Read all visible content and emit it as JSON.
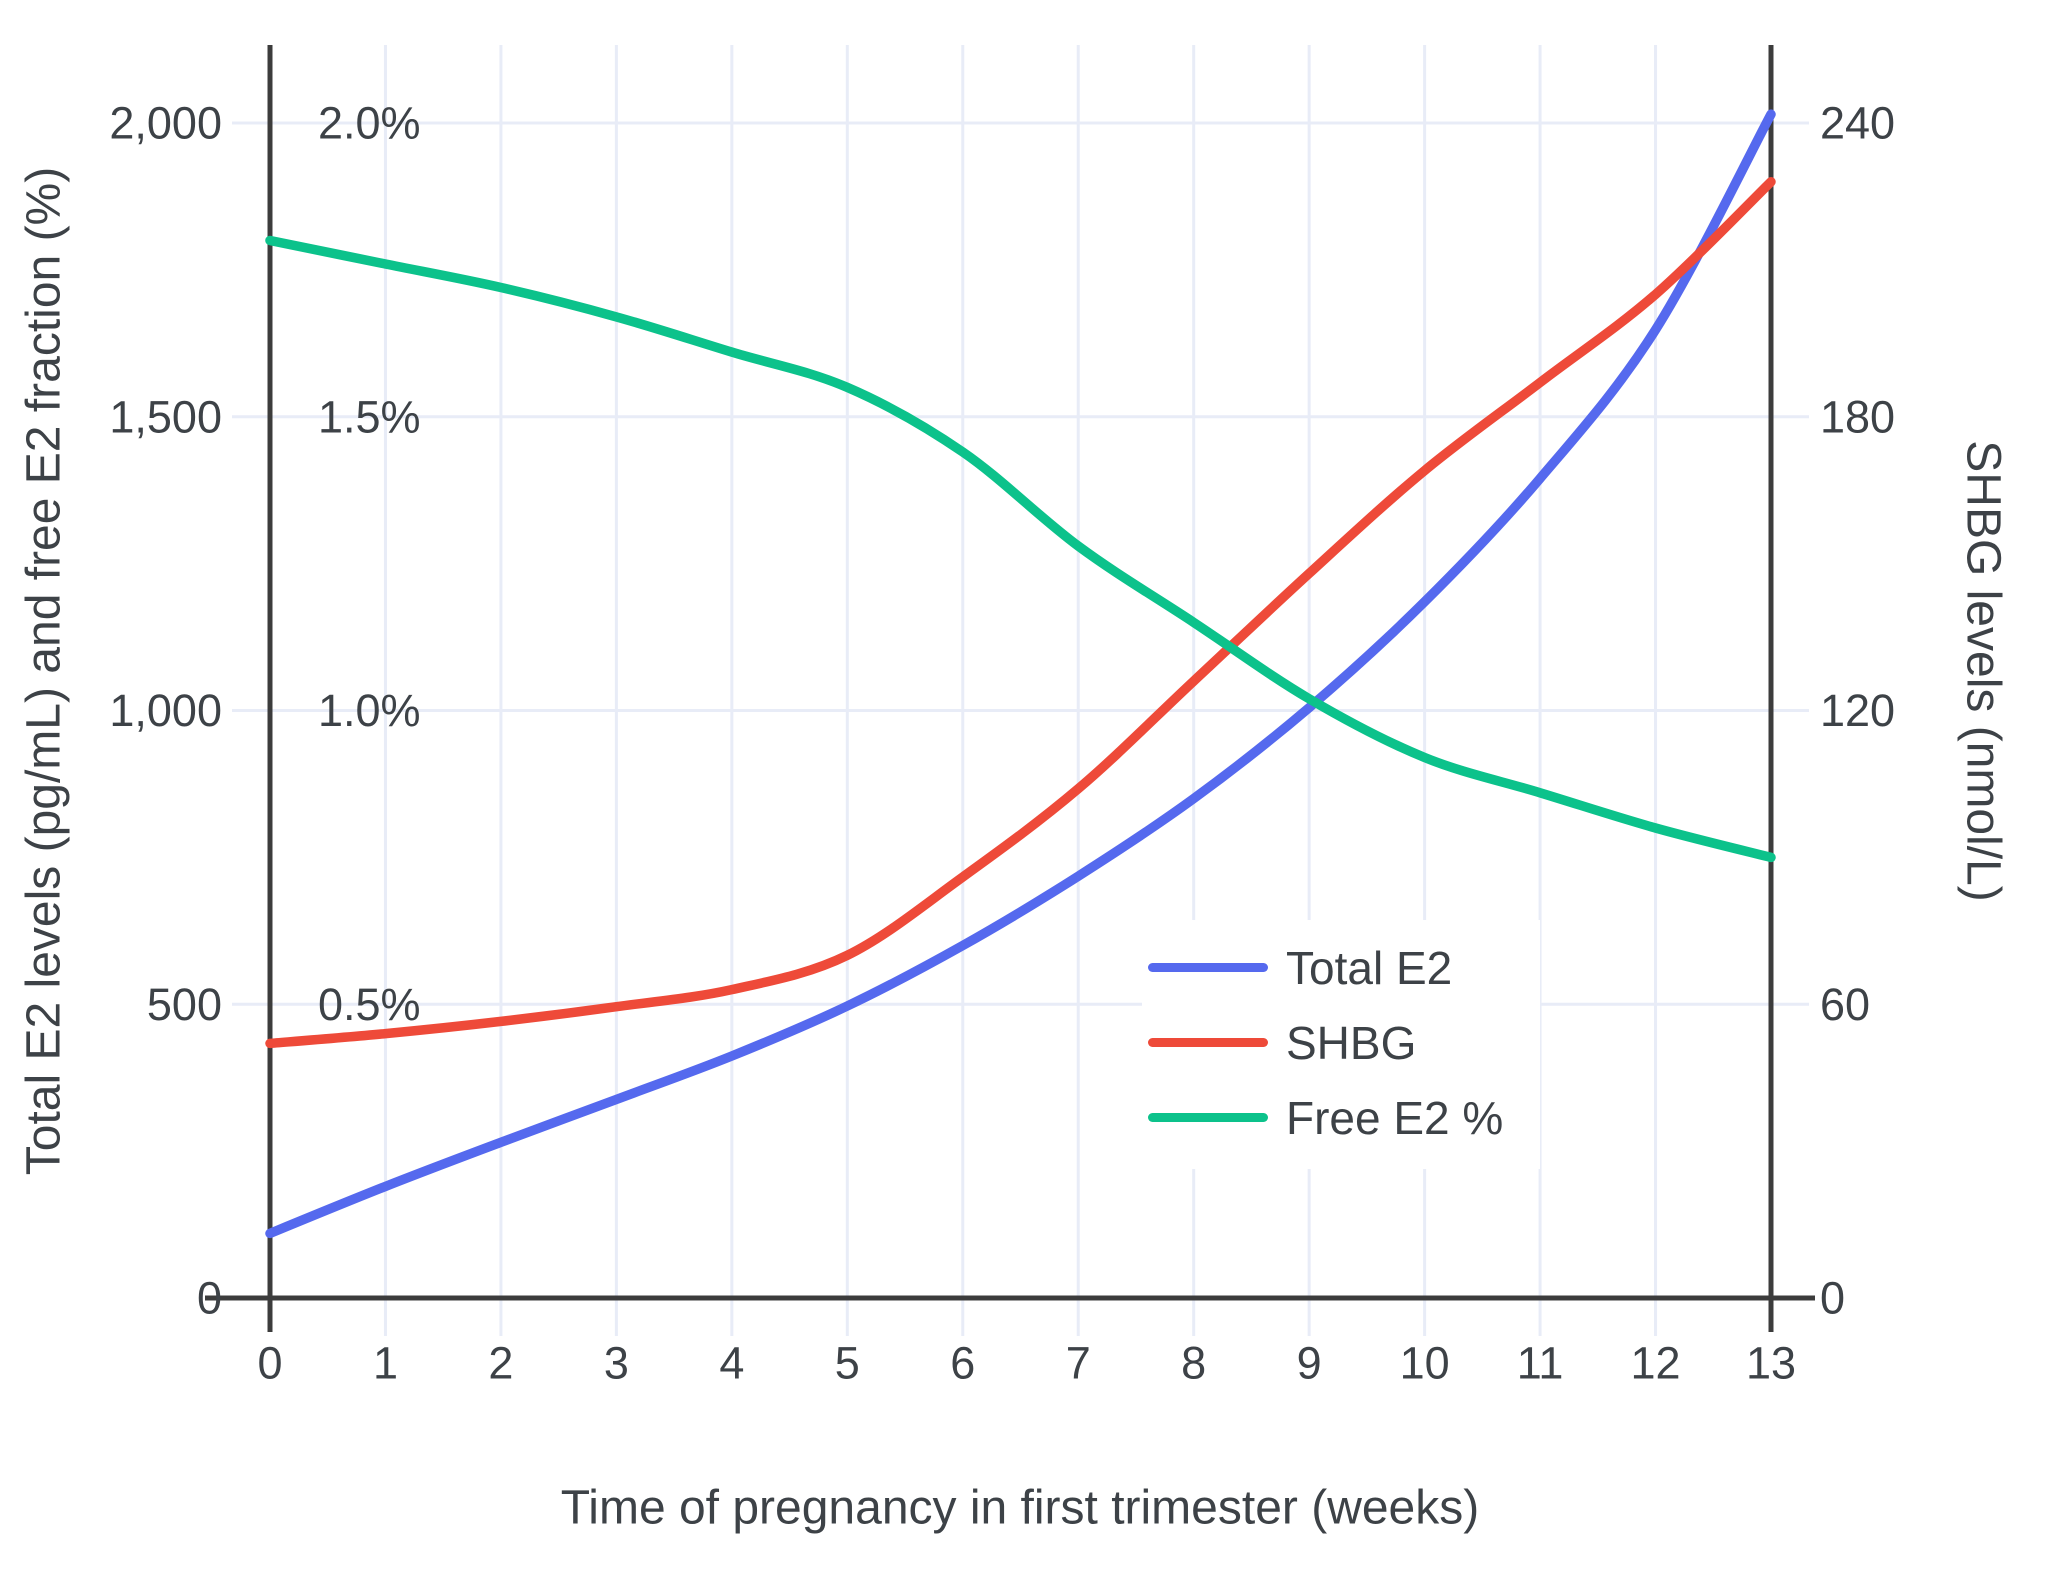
{
  "chart_data": {
    "type": "line",
    "title": "",
    "xlabel": "Time of pregnancy in first trimester (weeks)",
    "ylabel_left": "Total E2 levels (pg/mL) and free E2 fraction (%)",
    "ylabel_right": "SHBG levels (nmol/L)",
    "x": [
      0,
      1,
      2,
      3,
      4,
      5,
      6,
      7,
      8,
      9,
      10,
      11,
      12,
      13
    ],
    "x_tick_labels": [
      "0",
      "1",
      "2",
      "3",
      "4",
      "5",
      "6",
      "7",
      "8",
      "9",
      "10",
      "11",
      "12",
      "13"
    ],
    "x_range": [
      0,
      13
    ],
    "y_left_range": [
      0,
      2000
    ],
    "y_right_range": [
      0,
      240
    ],
    "percent_range": [
      0,
      2.0
    ],
    "grid": true,
    "legend_position": "inside-lower-right",
    "left_ticks": [
      {
        "value": 0,
        "label": "0"
      },
      {
        "value": 500,
        "label": "500"
      },
      {
        "value": 1000,
        "label": "1,000"
      },
      {
        "value": 1500,
        "label": "1,500"
      },
      {
        "value": 2000,
        "label": "2,000"
      }
    ],
    "right_ticks": [
      {
        "value": 0,
        "label": "0"
      },
      {
        "value": 60,
        "label": "60"
      },
      {
        "value": 120,
        "label": "120"
      },
      {
        "value": 180,
        "label": "180"
      },
      {
        "value": 240,
        "label": "240"
      }
    ],
    "percent_annotations": [
      {
        "percent": 0.5,
        "label": "0.5%"
      },
      {
        "percent": 1.0,
        "label": "1.0%"
      },
      {
        "percent": 1.5,
        "label": "1.5%"
      },
      {
        "percent": 2.0,
        "label": "2.0%"
      }
    ],
    "series": [
      {
        "name": "Total E2",
        "axis": "left",
        "unit": "pg/mL",
        "color": "#5569ee",
        "values": [
          110,
          190,
          265,
          338,
          412,
          497,
          600,
          718,
          850,
          1005,
          1185,
          1395,
          1648,
          2015
        ]
      },
      {
        "name": "SHBG",
        "axis": "right",
        "unit": "nmol/L",
        "color": "#ee4a39",
        "values": [
          52,
          54,
          56.5,
          59.5,
          63,
          70,
          86,
          104,
          126,
          148,
          169,
          187,
          205,
          228
        ]
      },
      {
        "name": "Free E2 %",
        "axis": "percent",
        "unit": "%",
        "color": "#0cc28b",
        "values": [
          1.8,
          1.76,
          1.72,
          1.67,
          1.61,
          1.55,
          1.44,
          1.28,
          1.15,
          1.02,
          0.92,
          0.86,
          0.8,
          0.75
        ]
      }
    ]
  },
  "colors": {
    "background": "#ffffff",
    "grid": "#e8ecf7",
    "axis": "#3c3c3c",
    "text": "#3d4247",
    "total_e2": "#5569ee",
    "shbg": "#ee4a39",
    "free_e2": "#0cc28b"
  }
}
